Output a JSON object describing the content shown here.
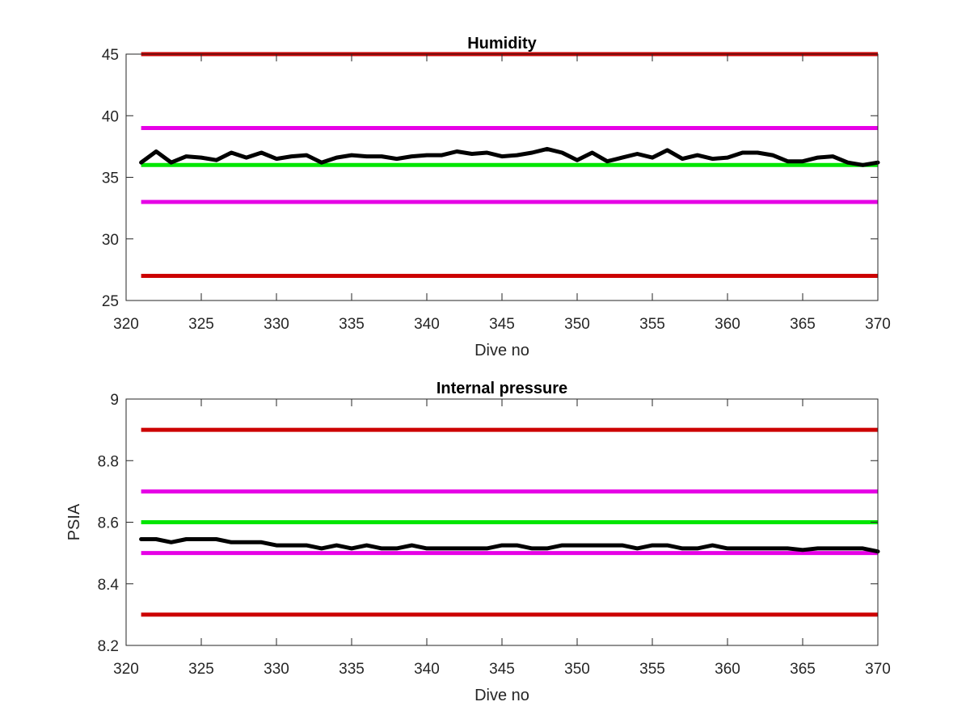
{
  "chart_data": [
    {
      "type": "line",
      "title": "Humidity",
      "xlabel": "Dive no",
      "ylabel": "",
      "xlim": [
        320,
        370
      ],
      "ylim": [
        25,
        45
      ],
      "xticks": [
        "320",
        "325",
        "330",
        "335",
        "340",
        "345",
        "350",
        "355",
        "360",
        "365",
        "370"
      ],
      "yticks": [
        "25",
        "30",
        "35",
        "40",
        "45"
      ],
      "grid": false,
      "reference_lines": [
        {
          "y": 45,
          "color": "#cc0000"
        },
        {
          "y": 39,
          "color": "#e600e6"
        },
        {
          "y": 36,
          "color": "#00e600"
        },
        {
          "y": 33,
          "color": "#e600e6"
        },
        {
          "y": 27,
          "color": "#cc0000"
        }
      ],
      "series": [
        {
          "color": "#000000",
          "x": [
            321,
            322,
            323,
            324,
            325,
            326,
            327,
            328,
            329,
            330,
            331,
            332,
            333,
            334,
            335,
            336,
            337,
            338,
            339,
            340,
            341,
            342,
            343,
            344,
            345,
            346,
            347,
            348,
            349,
            350,
            351,
            352,
            353,
            354,
            355,
            356,
            357,
            358,
            359,
            360,
            361,
            362,
            363,
            364,
            365,
            366,
            367,
            368,
            369,
            370
          ],
          "y": [
            36.2,
            37.1,
            36.2,
            36.7,
            36.6,
            36.4,
            37.0,
            36.6,
            37.0,
            36.5,
            36.7,
            36.8,
            36.2,
            36.6,
            36.8,
            36.7,
            36.7,
            36.5,
            36.7,
            36.8,
            36.8,
            37.1,
            36.9,
            37.0,
            36.7,
            36.8,
            37.0,
            37.3,
            37.0,
            36.4,
            37.0,
            36.3,
            36.6,
            36.9,
            36.6,
            37.2,
            36.5,
            36.8,
            36.5,
            36.6,
            37.0,
            37.0,
            36.8,
            36.3,
            36.3,
            36.6,
            36.7,
            36.2,
            36.0,
            36.2
          ]
        }
      ]
    },
    {
      "type": "line",
      "title": "Internal pressure",
      "xlabel": "Dive no",
      "ylabel": "PSIA",
      "xlim": [
        320,
        370
      ],
      "ylim": [
        8.2,
        9.0
      ],
      "xticks": [
        "320",
        "325",
        "330",
        "335",
        "340",
        "345",
        "350",
        "355",
        "360",
        "365",
        "370"
      ],
      "yticks": [
        "8.2",
        "8.4",
        "8.6",
        "8.8",
        "9"
      ],
      "grid": false,
      "reference_lines": [
        {
          "y": 8.9,
          "color": "#cc0000"
        },
        {
          "y": 8.7,
          "color": "#e600e6"
        },
        {
          "y": 8.6,
          "color": "#00e600"
        },
        {
          "y": 8.5,
          "color": "#e600e6"
        },
        {
          "y": 8.3,
          "color": "#cc0000"
        }
      ],
      "series": [
        {
          "color": "#000000",
          "x": [
            321,
            322,
            323,
            324,
            325,
            326,
            327,
            328,
            329,
            330,
            331,
            332,
            333,
            334,
            335,
            336,
            337,
            338,
            339,
            340,
            341,
            342,
            343,
            344,
            345,
            346,
            347,
            348,
            349,
            350,
            351,
            352,
            353,
            354,
            355,
            356,
            357,
            358,
            359,
            360,
            361,
            362,
            363,
            364,
            365,
            366,
            367,
            368,
            369,
            370
          ],
          "y": [
            8.545,
            8.545,
            8.535,
            8.545,
            8.545,
            8.545,
            8.535,
            8.535,
            8.535,
            8.525,
            8.525,
            8.525,
            8.515,
            8.525,
            8.515,
            8.525,
            8.515,
            8.515,
            8.525,
            8.515,
            8.515,
            8.515,
            8.515,
            8.515,
            8.525,
            8.525,
            8.515,
            8.515,
            8.525,
            8.525,
            8.525,
            8.525,
            8.525,
            8.515,
            8.525,
            8.525,
            8.515,
            8.515,
            8.525,
            8.515,
            8.515,
            8.515,
            8.515,
            8.515,
            8.51,
            8.515,
            8.515,
            8.515,
            8.515,
            8.505
          ]
        }
      ]
    }
  ]
}
